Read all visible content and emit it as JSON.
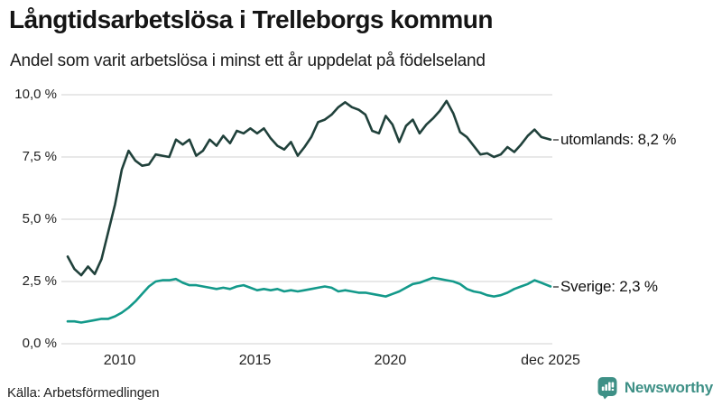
{
  "header": {
    "title": "Långtidsarbetslösa i Trelleborgs kommun",
    "subtitle": "Andel som varit arbetslösa i minst ett år uppdelat på födelseland"
  },
  "footer": {
    "source": "Källa: Arbetsförmedlingen",
    "brand": "Newsworthy"
  },
  "colors": {
    "utomlands_line": "#20413b",
    "sverige_line": "#13998a",
    "gridline": "#d9d9d9",
    "brand_teal": "#3e9086",
    "label_dash": "#777777"
  },
  "chart_data": {
    "type": "line",
    "title": "Långtidsarbetslösa i Trelleborgs kommun",
    "subtitle": "Andel som varit arbetslösa i minst ett år uppdelat på födelseland",
    "unit": "%",
    "grid": true,
    "legend_position": "right-end-labels",
    "ylim": [
      0,
      10
    ],
    "xlim": [
      2008.08,
      2025.92
    ],
    "y_ticks": [
      10,
      7.5,
      5,
      2.5,
      0
    ],
    "y_tick_labels": [
      "10,0 %",
      "7,5 %",
      "5,0 %",
      "2,5 %",
      "0,0 %"
    ],
    "x_ticks": [
      2010,
      2015,
      2020,
      2025.92
    ],
    "x_tick_labels": [
      "2010",
      "2015",
      "2020",
      "dec 2025"
    ],
    "x": [
      2008.08,
      2008.33,
      2008.58,
      2008.83,
      2009.08,
      2009.33,
      2009.58,
      2009.83,
      2010.08,
      2010.33,
      2010.58,
      2010.83,
      2011.08,
      2011.33,
      2011.58,
      2011.83,
      2012.08,
      2012.33,
      2012.58,
      2012.83,
      2013.08,
      2013.33,
      2013.58,
      2013.83,
      2014.08,
      2014.33,
      2014.58,
      2014.83,
      2015.08,
      2015.33,
      2015.58,
      2015.83,
      2016.08,
      2016.33,
      2016.58,
      2016.83,
      2017.08,
      2017.33,
      2017.58,
      2017.83,
      2018.08,
      2018.33,
      2018.58,
      2018.83,
      2019.08,
      2019.33,
      2019.58,
      2019.83,
      2020.08,
      2020.33,
      2020.58,
      2020.83,
      2021.08,
      2021.33,
      2021.58,
      2021.83,
      2022.08,
      2022.33,
      2022.58,
      2022.83,
      2023.08,
      2023.33,
      2023.58,
      2023.83,
      2024.08,
      2024.33,
      2024.58,
      2024.83,
      2025.08,
      2025.33,
      2025.58,
      2025.92
    ],
    "series": [
      {
        "name": "utomlands",
        "end_label": "utomlands: 8,2 %",
        "last_value": 8.2,
        "color": "#20413b",
        "values": [
          3.5,
          3.0,
          2.75,
          3.1,
          2.8,
          3.4,
          4.5,
          5.6,
          7.0,
          7.75,
          7.35,
          7.15,
          7.2,
          7.6,
          7.55,
          7.5,
          8.2,
          8.0,
          8.2,
          7.55,
          7.75,
          8.2,
          7.95,
          8.35,
          8.05,
          8.55,
          8.45,
          8.65,
          8.45,
          8.65,
          8.25,
          7.95,
          7.8,
          8.1,
          7.55,
          7.9,
          8.3,
          8.9,
          9.0,
          9.2,
          9.5,
          9.7,
          9.5,
          9.4,
          9.2,
          8.55,
          8.45,
          9.15,
          8.8,
          8.1,
          8.75,
          9.0,
          8.45,
          8.8,
          9.05,
          9.35,
          9.75,
          9.25,
          8.5,
          8.3,
          7.95,
          7.6,
          7.65,
          7.5,
          7.6,
          7.9,
          7.7,
          8.0,
          8.35,
          8.6,
          8.3,
          8.2
        ]
      },
      {
        "name": "Sverige",
        "end_label": "Sverige: 2,3 %",
        "last_value": 2.3,
        "color": "#13998a",
        "values": [
          0.9,
          0.9,
          0.85,
          0.9,
          0.95,
          1.0,
          1.0,
          1.1,
          1.25,
          1.45,
          1.7,
          2.0,
          2.3,
          2.5,
          2.55,
          2.55,
          2.6,
          2.45,
          2.35,
          2.35,
          2.3,
          2.25,
          2.2,
          2.25,
          2.2,
          2.3,
          2.35,
          2.25,
          2.15,
          2.2,
          2.15,
          2.2,
          2.1,
          2.15,
          2.1,
          2.15,
          2.2,
          2.25,
          2.3,
          2.25,
          2.1,
          2.15,
          2.1,
          2.05,
          2.05,
          2.0,
          1.95,
          1.9,
          2.0,
          2.1,
          2.25,
          2.4,
          2.45,
          2.55,
          2.65,
          2.6,
          2.55,
          2.5,
          2.4,
          2.2,
          2.1,
          2.05,
          1.95,
          1.9,
          1.95,
          2.05,
          2.2,
          2.3,
          2.4,
          2.55,
          2.45,
          2.3
        ]
      }
    ]
  }
}
